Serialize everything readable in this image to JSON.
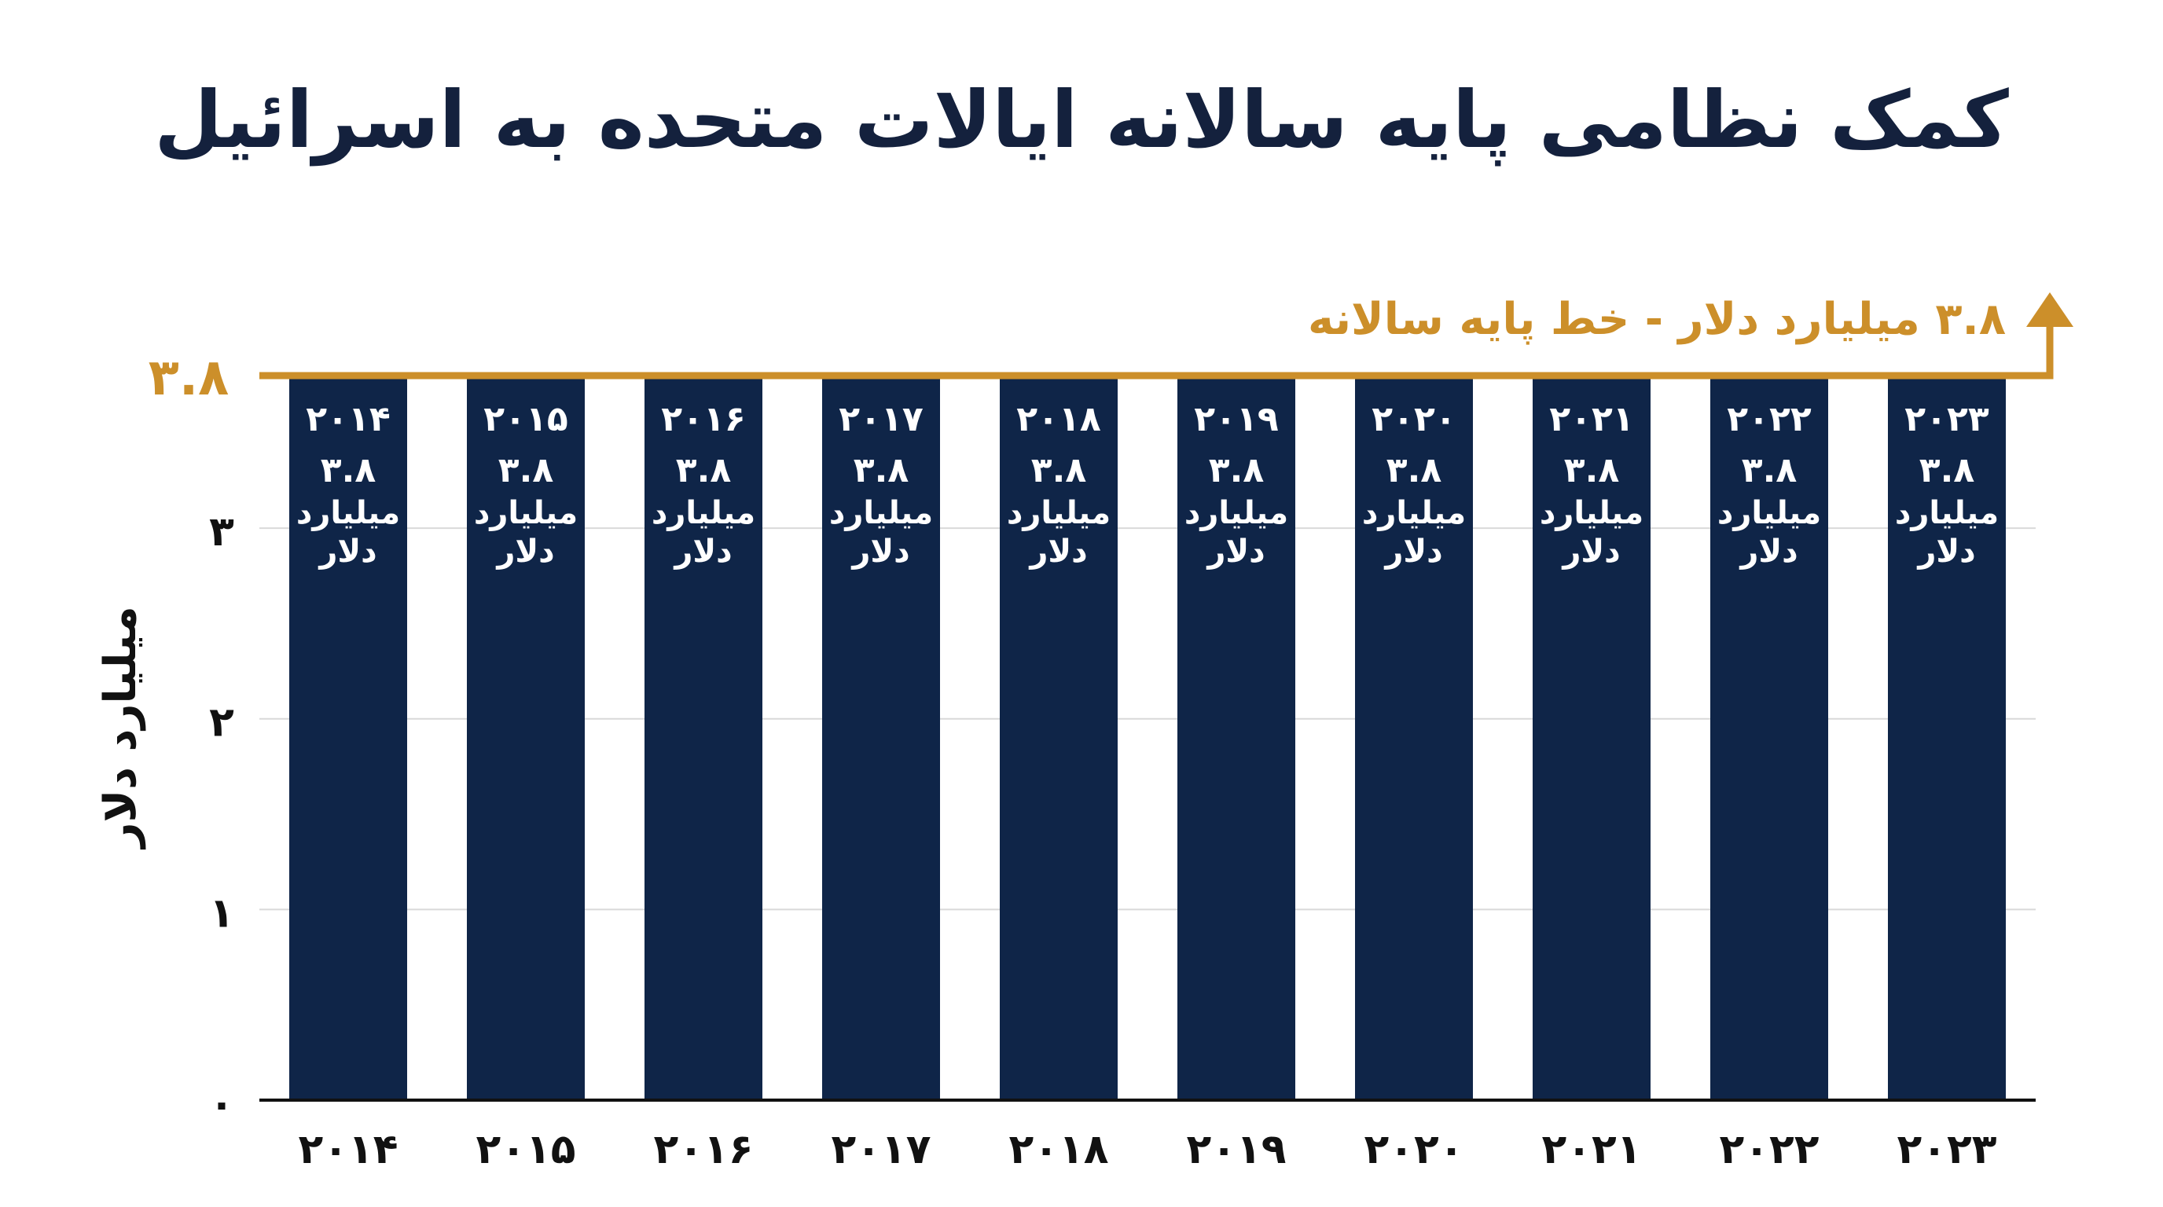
{
  "chart_data": {
    "type": "bar",
    "title": "کمک نظامی پایه سالانه ایالات متحده به اسرائیل",
    "ylabel": "میلیارد دلار",
    "xlabel": "",
    "ylim": [
      0,
      3.8
    ],
    "yticks": [
      {
        "value": 0,
        "label": "۰"
      },
      {
        "value": 1,
        "label": "۱"
      },
      {
        "value": 2,
        "label": "۲"
      },
      {
        "value": 3,
        "label": "۳"
      }
    ],
    "grid": true,
    "categories": [
      "۲۰۱۴",
      "۲۰۱۵",
      "۲۰۱۶",
      "۲۰۱۷",
      "۲۰۱۸",
      "۲۰۱۹",
      "۲۰۲۰",
      "۲۰۲۱",
      "۲۰۲۲",
      "۲۰۲۳"
    ],
    "values": [
      3.8,
      3.8,
      3.8,
      3.8,
      3.8,
      3.8,
      3.8,
      3.8,
      3.8,
      3.8
    ],
    "value_labels": [
      "۳.۸",
      "۳.۸",
      "۳.۸",
      "۳.۸",
      "۳.۸",
      "۳.۸",
      "۳.۸",
      "۳.۸",
      "۳.۸",
      "۳.۸"
    ],
    "unit_line1": "میلیارد",
    "unit_line2": "دلار",
    "reference_line": {
      "value": 3.8,
      "axis_label": "۳.۸",
      "label": "۳.۸ میلیارد دلار - خط پایه سالانه"
    },
    "colors": {
      "bar": "#0f2548",
      "reference": "#cc8f2a",
      "grid": "#d9d9d9",
      "axis": "#111111",
      "title": "#14213d"
    }
  }
}
